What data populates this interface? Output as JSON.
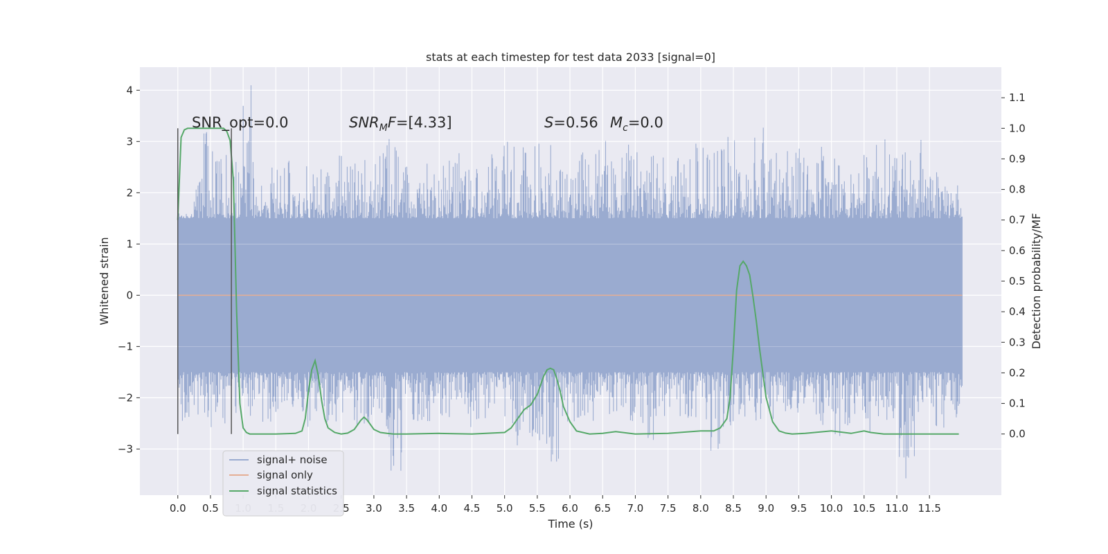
{
  "chart_data": {
    "type": "line",
    "title": "stats at each timestep for test data 2033 [signal=0]",
    "xlabel": "Time (s)",
    "ylabel": "Whitened strain",
    "ylabel_right": "Detection probability/MF",
    "xlim": [
      -0.58,
      12.6
    ],
    "ylim": [
      -3.9,
      4.45
    ],
    "ylim_right": [
      -0.2,
      1.2
    ],
    "x_ticks": [
      0.0,
      0.5,
      1.0,
      1.5,
      2.0,
      2.5,
      3.0,
      3.5,
      4.0,
      4.5,
      5.0,
      5.5,
      6.0,
      6.5,
      7.0,
      7.5,
      8.0,
      8.5,
      9.0,
      9.5,
      10.0,
      10.5,
      11.0,
      11.5
    ],
    "x_tick_labels": [
      "0.0",
      "0.5",
      "1.0",
      "1.5",
      "2.0",
      "2.5",
      "3.0",
      "3.5",
      "4.0",
      "4.5",
      "5.0",
      "5.5",
      "6.0",
      "6.5",
      "7.0",
      "7.5",
      "8.0",
      "8.5",
      "9.0",
      "9.5",
      "10.0",
      "10.5",
      "11.0",
      "11.5"
    ],
    "y_ticks": [
      -3,
      -2,
      -1,
      0,
      1,
      2,
      3,
      4
    ],
    "y_tick_labels": [
      "−3",
      "−2",
      "−1",
      "0",
      "1",
      "2",
      "3",
      "4"
    ],
    "y_right_ticks": [
      0.0,
      0.1,
      0.2,
      0.3,
      0.4,
      0.5,
      0.6,
      0.7,
      0.8,
      0.9,
      1.0,
      1.1
    ],
    "y_right_tick_labels": [
      "0.0",
      "0.1",
      "0.2",
      "0.3",
      "0.4",
      "0.5",
      "0.6",
      "0.7",
      "0.8",
      "0.9",
      "1.0",
      "1.1"
    ],
    "grid": true,
    "legend_placement": "lower-left",
    "annotations": {
      "snr_opt": "SNR_opt=0.0",
      "snr_mf_main": "SNR",
      "snr_mf_sub": "M",
      "snr_mf_rest": "F=[4.33]",
      "s_italic": "S",
      "s_rest": "=0.56",
      "mc_main": "M",
      "mc_sub": "c",
      "mc_rest": "=0.0"
    },
    "series": [
      {
        "name": "signal+ noise",
        "color": "#9aabd0",
        "x_range": [
          0.0,
          12.0
        ],
        "envelope_high": [
          1.6,
          3.3,
          2.9,
          2.8,
          4.1,
          2.6,
          2.7,
          2.1,
          2.6,
          2.5,
          2.8,
          2.7,
          2.9,
          3.1,
          2.6,
          2.7,
          2.9,
          2.9,
          2.5,
          2.8,
          3.0,
          3.1,
          3.0,
          3.0,
          2.6,
          2.8,
          3.1,
          2.7,
          3.0,
          2.9,
          2.8,
          2.7,
          3.0,
          2.9,
          3.1,
          2.9,
          3.6,
          2.8,
          3.2,
          2.9,
          2.9,
          3.0,
          2.8,
          3.3,
          3.1,
          2.8,
          3.1,
          2.6,
          2.3
        ],
        "envelope_low": [
          -2.7,
          -2.4,
          -3.0,
          -2.3,
          -2.4,
          -2.5,
          -2.3,
          -2.4,
          -2.6,
          -2.5,
          -2.3,
          -2.6,
          -2.4,
          -3.5,
          -2.7,
          -2.5,
          -2.4,
          -2.3,
          -2.6,
          -2.4,
          -2.7,
          -3.0,
          -2.9,
          -3.3,
          -2.6,
          -2.5,
          -2.4,
          -2.6,
          -2.5,
          -2.9,
          -2.5,
          -2.4,
          -2.6,
          -3.2,
          -2.7,
          -2.5,
          -2.6,
          -2.6,
          -2.3,
          -2.5,
          -2.6,
          -2.9,
          -2.6,
          -2.8,
          -2.5,
          -3.6,
          -2.4,
          -2.7,
          -2.4
        ]
      },
      {
        "name": "signal only",
        "color": "#e5ae94",
        "x": [
          0.0,
          12.0
        ],
        "y": [
          0.0,
          0.0
        ]
      },
      {
        "name": "signal statistics",
        "color": "#55a868",
        "axis": "right",
        "x": [
          0.0,
          0.05,
          0.1,
          0.15,
          0.2,
          0.3,
          0.4,
          0.5,
          0.6,
          0.7,
          0.75,
          0.8,
          0.85,
          0.9,
          0.95,
          1.0,
          1.05,
          1.1,
          1.2,
          1.5,
          1.8,
          1.9,
          1.95,
          2.0,
          2.05,
          2.1,
          2.15,
          2.2,
          2.25,
          2.3,
          2.4,
          2.5,
          2.6,
          2.7,
          2.8,
          2.85,
          2.9,
          2.95,
          3.0,
          3.1,
          3.2,
          3.3,
          3.5,
          4.0,
          4.5,
          4.8,
          5.0,
          5.1,
          5.2,
          5.3,
          5.4,
          5.5,
          5.6,
          5.65,
          5.7,
          5.75,
          5.8,
          5.85,
          5.9,
          6.0,
          6.1,
          6.3,
          6.5,
          6.7,
          7.0,
          7.5,
          8.0,
          8.2,
          8.3,
          8.4,
          8.45,
          8.5,
          8.55,
          8.6,
          8.65,
          8.7,
          8.75,
          8.8,
          8.85,
          8.9,
          9.0,
          9.1,
          9.2,
          9.3,
          9.4,
          9.6,
          10.0,
          10.3,
          10.5,
          10.6,
          10.8,
          11.0,
          11.5,
          11.95
        ],
        "y": [
          0.7,
          0.97,
          0.995,
          1.0,
          1.0,
          1.0,
          1.0,
          1.0,
          1.0,
          1.0,
          0.99,
          0.96,
          0.83,
          0.4,
          0.1,
          0.02,
          0.005,
          0.0,
          0.0,
          0.0,
          0.002,
          0.01,
          0.05,
          0.14,
          0.21,
          0.24,
          0.19,
          0.11,
          0.05,
          0.02,
          0.005,
          0.0,
          0.003,
          0.015,
          0.045,
          0.055,
          0.045,
          0.03,
          0.015,
          0.005,
          0.002,
          0.0,
          0.0,
          0.002,
          0.0,
          0.003,
          0.005,
          0.02,
          0.05,
          0.08,
          0.095,
          0.13,
          0.19,
          0.21,
          0.215,
          0.21,
          0.18,
          0.14,
          0.09,
          0.04,
          0.01,
          0.0,
          0.002,
          0.008,
          0.0,
          0.002,
          0.01,
          0.01,
          0.02,
          0.05,
          0.12,
          0.28,
          0.47,
          0.55,
          0.565,
          0.55,
          0.52,
          0.45,
          0.37,
          0.28,
          0.12,
          0.04,
          0.01,
          0.003,
          0.0,
          0.002,
          0.01,
          0.002,
          0.01,
          0.005,
          0.0,
          0.0,
          0.0,
          0.0
        ]
      }
    ],
    "vertical_lines": [
      0.0,
      0.82
    ],
    "vertical_lines_color": "#555555"
  }
}
